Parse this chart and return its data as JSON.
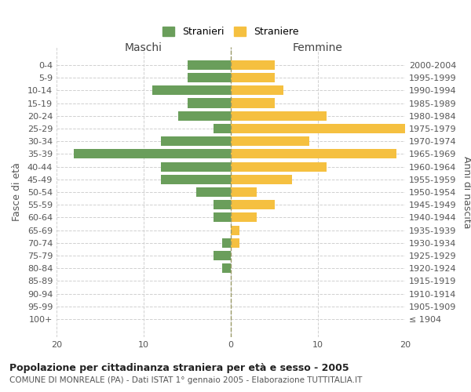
{
  "age_groups": [
    "0-4",
    "5-9",
    "10-14",
    "15-19",
    "20-24",
    "25-29",
    "30-34",
    "35-39",
    "40-44",
    "45-49",
    "50-54",
    "55-59",
    "60-64",
    "65-69",
    "70-74",
    "75-79",
    "80-84",
    "85-89",
    "90-94",
    "95-99",
    "100+"
  ],
  "birth_years": [
    "2000-2004",
    "1995-1999",
    "1990-1994",
    "1985-1989",
    "1980-1984",
    "1975-1979",
    "1970-1974",
    "1965-1969",
    "1960-1964",
    "1955-1959",
    "1950-1954",
    "1945-1949",
    "1940-1944",
    "1935-1939",
    "1930-1934",
    "1925-1929",
    "1920-1924",
    "1915-1919",
    "1910-1914",
    "1905-1909",
    "≤ 1904"
  ],
  "maschi": [
    5,
    5,
    9,
    5,
    6,
    2,
    8,
    18,
    8,
    8,
    4,
    2,
    2,
    0,
    1,
    2,
    1,
    0,
    0,
    0,
    0
  ],
  "femmine": [
    5,
    5,
    6,
    5,
    11,
    20,
    9,
    19,
    11,
    7,
    3,
    5,
    3,
    1,
    1,
    0,
    0,
    0,
    0,
    0,
    0
  ],
  "maschi_color": "#6a9e5b",
  "femmine_color": "#f5c040",
  "title": "Popolazione per cittadinanza straniera per età e sesso - 2005",
  "subtitle": "COMUNE DI MONREALE (PA) - Dati ISTAT 1° gennaio 2005 - Elaborazione TUTTITALIA.IT",
  "legend_maschi": "Stranieri",
  "legend_femmine": "Straniere",
  "xlabel_left": "Maschi",
  "xlabel_right": "Femmine",
  "ylabel_left": "Fasce di età",
  "ylabel_right": "Anni di nascita",
  "xlim": 20,
  "background_color": "#ffffff",
  "grid_color": "#d0d0d0"
}
